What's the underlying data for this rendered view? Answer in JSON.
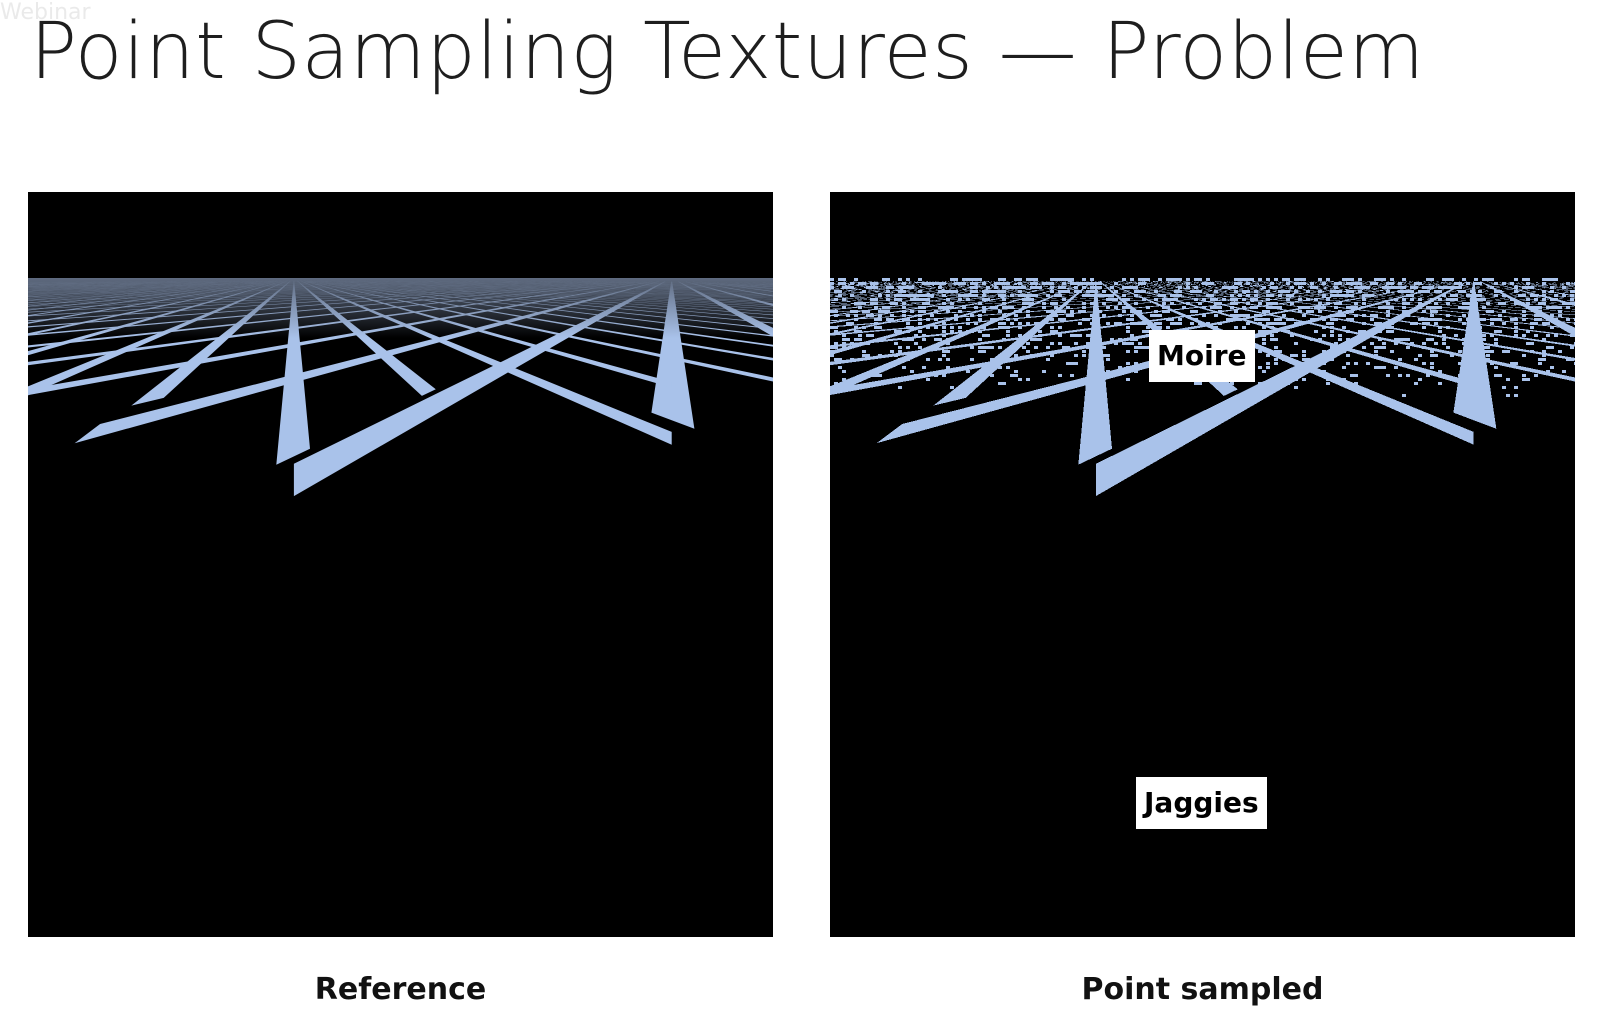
{
  "slide": {
    "title": "Point Sampling Textures — Problem",
    "watermark": "Webinar"
  },
  "panels": {
    "left": {
      "caption": "Reference",
      "style": "smooth"
    },
    "right": {
      "caption": "Point sampled",
      "style": "aliased",
      "labels": {
        "moire": "Moire",
        "jaggies": "Jaggies"
      }
    }
  },
  "colors": {
    "grid": "#a9c2ea",
    "background": "#000000",
    "sky": "#000000"
  }
}
